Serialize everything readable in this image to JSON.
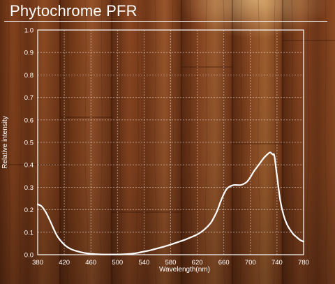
{
  "header": {
    "title": "Phytochrome PFR"
  },
  "chart_data": {
    "type": "line",
    "title": "Phytochrome PFR",
    "xlabel": "Wavelength(nm)",
    "ylabel": "Relative intensity",
    "xlim": [
      380,
      780
    ],
    "ylim": [
      0.0,
      1.0
    ],
    "x_ticks": [
      380,
      420,
      460,
      500,
      540,
      580,
      620,
      660,
      700,
      740,
      780
    ],
    "y_ticks": [
      "0.0",
      "0.1",
      "0.2",
      "0.3",
      "0.4",
      "0.5",
      "0.6",
      "0.7",
      "0.8",
      "0.9",
      "1.0"
    ],
    "grid": true,
    "series": [
      {
        "color": "#ffffff",
        "x": [
          380,
          386,
          392,
          398,
          404,
          410,
          420,
          430,
          440,
          450,
          460,
          470,
          480,
          490,
          500,
          510,
          520,
          530,
          540,
          550,
          560,
          570,
          580,
          590,
          600,
          610,
          620,
          630,
          640,
          645,
          650,
          655,
          660,
          665,
          670,
          675,
          680,
          685,
          690,
          695,
          700,
          705,
          710,
          715,
          720,
          725,
          728,
          730,
          732,
          734,
          736,
          740,
          745,
          750,
          755,
          760,
          765,
          770,
          775,
          780
        ],
        "y": [
          0.225,
          0.215,
          0.19,
          0.155,
          0.115,
          0.08,
          0.045,
          0.025,
          0.015,
          0.008,
          0.004,
          0.002,
          0.001,
          0.001,
          0.001,
          0.002,
          0.004,
          0.008,
          0.014,
          0.02,
          0.028,
          0.036,
          0.045,
          0.055,
          0.065,
          0.077,
          0.09,
          0.11,
          0.14,
          0.165,
          0.195,
          0.235,
          0.27,
          0.295,
          0.305,
          0.31,
          0.31,
          0.31,
          0.315,
          0.325,
          0.345,
          0.37,
          0.39,
          0.41,
          0.43,
          0.445,
          0.453,
          0.455,
          0.45,
          0.445,
          0.44,
          0.35,
          0.24,
          0.175,
          0.135,
          0.11,
          0.09,
          0.077,
          0.065,
          0.058
        ]
      }
    ]
  }
}
